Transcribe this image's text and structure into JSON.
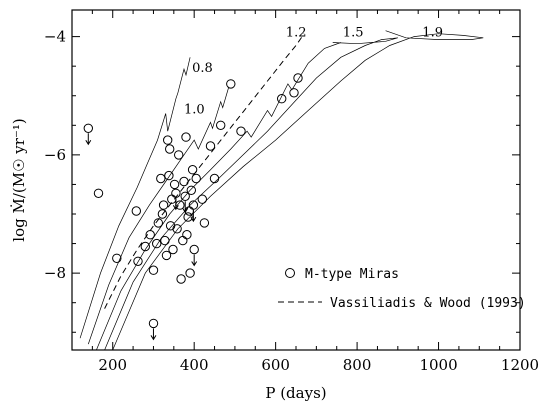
{
  "chart_data": {
    "type": "scatter",
    "xlabel": "P (days)",
    "ylabel": "log Ṁ/(M☉ yr⁻¹)",
    "xlim": [
      100,
      1200
    ],
    "ylim": [
      -9.3,
      -3.55
    ],
    "xticks": [
      200,
      400,
      600,
      800,
      1000,
      1200
    ],
    "yticks": [
      -8,
      -6,
      -4
    ],
    "xtick_labels": [
      "200",
      "400",
      "600",
      "800",
      "1000",
      "1200"
    ],
    "ytick_labels": [
      "−8",
      "−6",
      "−4"
    ],
    "legend_position": "lower-right",
    "legend": [
      {
        "marker": "circle",
        "label": "M-type Miras"
      },
      {
        "marker": "dashed-line",
        "label": "Vassiliadis & Wood (1993)"
      }
    ],
    "miras": [
      {
        "x": 140,
        "y": -5.55,
        "upper_limit": true
      },
      {
        "x": 165,
        "y": -6.65
      },
      {
        "x": 210,
        "y": -7.75
      },
      {
        "x": 258,
        "y": -6.95
      },
      {
        "x": 262,
        "y": -7.8
      },
      {
        "x": 280,
        "y": -7.55
      },
      {
        "x": 292,
        "y": -7.35
      },
      {
        "x": 300,
        "y": -7.95
      },
      {
        "x": 300,
        "y": -8.85,
        "upper_limit": true
      },
      {
        "x": 308,
        "y": -7.5
      },
      {
        "x": 312,
        "y": -7.15
      },
      {
        "x": 318,
        "y": -6.4
      },
      {
        "x": 322,
        "y": -7.0
      },
      {
        "x": 325,
        "y": -6.85
      },
      {
        "x": 328,
        "y": -7.45
      },
      {
        "x": 332,
        "y": -7.7
      },
      {
        "x": 335,
        "y": -5.75
      },
      {
        "x": 338,
        "y": -6.35
      },
      {
        "x": 340,
        "y": -5.9
      },
      {
        "x": 342,
        "y": -7.2
      },
      {
        "x": 345,
        "y": -6.75
      },
      {
        "x": 348,
        "y": -7.6
      },
      {
        "x": 352,
        "y": -6.5
      },
      {
        "x": 355,
        "y": -6.65,
        "upper_limit": true
      },
      {
        "x": 358,
        "y": -7.25
      },
      {
        "x": 362,
        "y": -6.0
      },
      {
        "x": 365,
        "y": -6.85
      },
      {
        "x": 368,
        "y": -8.1
      },
      {
        "x": 372,
        "y": -7.45
      },
      {
        "x": 375,
        "y": -6.45
      },
      {
        "x": 378,
        "y": -6.7,
        "upper_limit": true
      },
      {
        "x": 380,
        "y": -5.7
      },
      {
        "x": 382,
        "y": -7.35
      },
      {
        "x": 385,
        "y": -7.05
      },
      {
        "x": 388,
        "y": -6.95
      },
      {
        "x": 390,
        "y": -8.0
      },
      {
        "x": 393,
        "y": -6.6
      },
      {
        "x": 396,
        "y": -6.25
      },
      {
        "x": 398,
        "y": -6.85,
        "upper_limit": true
      },
      {
        "x": 400,
        "y": -7.6,
        "upper_limit": true
      },
      {
        "x": 405,
        "y": -6.4
      },
      {
        "x": 420,
        "y": -6.75
      },
      {
        "x": 425,
        "y": -7.15
      },
      {
        "x": 440,
        "y": -5.85
      },
      {
        "x": 450,
        "y": -6.4
      },
      {
        "x": 465,
        "y": -5.5
      },
      {
        "x": 490,
        "y": -4.8
      },
      {
        "x": 515,
        "y": -5.6
      },
      {
        "x": 615,
        "y": -5.05
      },
      {
        "x": 645,
        "y": -4.95
      },
      {
        "x": 655,
        "y": -4.7
      }
    ],
    "track_labels": [
      {
        "text": "0.8",
        "x": 395,
        "y": -4.6
      },
      {
        "text": "1.0",
        "x": 375,
        "y": -5.3
      },
      {
        "text": "1.2",
        "x": 625,
        "y": -4.0
      },
      {
        "text": "1.5",
        "x": 765,
        "y": -4.0
      },
      {
        "text": "1.9",
        "x": 960,
        "y": -4.0
      }
    ],
    "vw_curve": {
      "x": [
        180,
        220,
        260,
        300,
        340,
        380,
        420,
        460,
        500,
        540,
        580,
        620,
        650,
        670
      ],
      "y": [
        -8.6,
        -8.05,
        -7.6,
        -7.2,
        -6.85,
        -6.5,
        -6.15,
        -5.8,
        -5.45,
        -5.1,
        -4.75,
        -4.4,
        -4.15,
        -3.95
      ]
    },
    "tracks": [
      {
        "label": "0.8",
        "x": [
          120,
          170,
          215,
          260,
          285,
          310,
          330,
          335,
          355,
          360,
          375,
          380,
          390
        ],
        "y": [
          -9.1,
          -8.0,
          -7.2,
          -6.55,
          -6.15,
          -5.75,
          -5.3,
          -5.6,
          -5.05,
          -4.95,
          -4.55,
          -4.65,
          -4.35
        ]
      },
      {
        "label": "1.0",
        "x": [
          140,
          190,
          240,
          290,
          330,
          365,
          400,
          410,
          440,
          445,
          465,
          470,
          485
        ],
        "y": [
          -9.2,
          -8.2,
          -7.4,
          -6.85,
          -6.45,
          -6.1,
          -5.75,
          -5.9,
          -5.45,
          -5.55,
          -5.1,
          -5.2,
          -4.85
        ]
      },
      {
        "label": "1.2",
        "x": [
          160,
          220,
          280,
          340,
          390,
          440,
          490,
          530,
          540,
          580,
          590,
          630,
          640,
          680,
          720,
          760
        ],
        "y": [
          -9.3,
          -8.3,
          -7.6,
          -7.0,
          -6.6,
          -6.25,
          -5.9,
          -5.6,
          -5.7,
          -5.25,
          -5.35,
          -4.8,
          -4.9,
          -4.45,
          -4.2,
          -4.1
        ]
      },
      {
        "label": "1.5",
        "x": [
          180,
          250,
          320,
          390,
          460,
          520,
          580,
          640,
          700,
          760,
          820,
          860,
          900,
          870,
          800,
          740
        ],
        "y": [
          -9.3,
          -8.15,
          -7.4,
          -6.85,
          -6.4,
          -6.0,
          -5.6,
          -5.15,
          -4.7,
          -4.35,
          -4.15,
          -4.05,
          -4.02,
          -4.08,
          -4.12,
          -4.1
        ]
      },
      {
        "label": "1.9",
        "x": [
          200,
          280,
          360,
          440,
          520,
          600,
          680,
          760,
          820,
          880,
          940,
          1000,
          1060,
          1110,
          1080,
          1000,
          920,
          870
        ],
        "y": [
          -9.3,
          -8.0,
          -7.25,
          -6.7,
          -6.2,
          -5.75,
          -5.25,
          -4.75,
          -4.4,
          -4.15,
          -4.0,
          -3.95,
          -3.98,
          -4.02,
          -4.05,
          -4.05,
          -4.02,
          -3.9
        ]
      }
    ]
  }
}
